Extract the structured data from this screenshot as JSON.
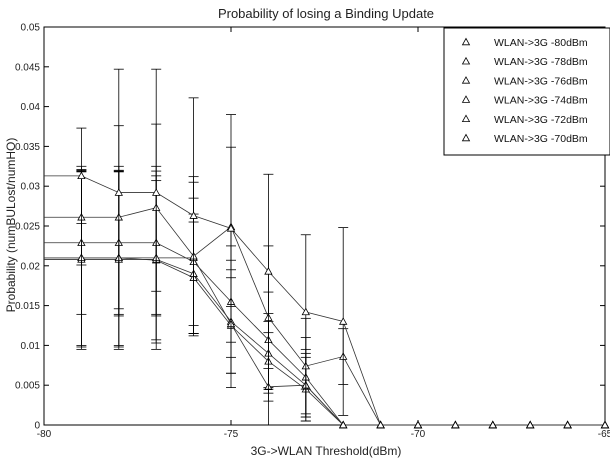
{
  "chart_data": {
    "type": "line",
    "title": "Probability of losing a Binding Update",
    "xlabel": "3G->WLAN Threshold(dBm)",
    "ylabel": "Probability (numBULost/numHO)",
    "xlim": [
      -80,
      -65
    ],
    "ylim": [
      0,
      0.05
    ],
    "xticks": [
      -80,
      -75,
      -70,
      -65
    ],
    "yticks": [
      0,
      0.005,
      0.01,
      0.015,
      0.02,
      0.025,
      0.03,
      0.035,
      0.04,
      0.045,
      0.05
    ],
    "grid": false,
    "legend_position": "top-right",
    "x": [
      -79,
      -78,
      -77,
      -76,
      -75,
      -74,
      -73,
      -72,
      -71,
      -70,
      -69,
      -68,
      -67,
      -66,
      -65
    ],
    "series": [
      {
        "name": "WLAN->3G -80dBm",
        "values": [
          0.021,
          0.021,
          0.0207,
          0.0185,
          0.0125,
          0.008,
          0.0045,
          0.0,
          0.0,
          0.0,
          0.0,
          0.0,
          0.0,
          0.0,
          0.0
        ],
        "errors": [
          0.011,
          0.011,
          0.01,
          0.007,
          0.006,
          0.005,
          0.004,
          0.0,
          0.0,
          0.0,
          0.0,
          0.0,
          0.0,
          0.0,
          0.0
        ]
      },
      {
        "name": "WLAN->3G -78dBm",
        "values": [
          0.0208,
          0.0208,
          0.0208,
          0.019,
          0.013,
          0.009,
          0.005,
          0.0,
          0.0,
          0.0,
          0.0,
          0.0,
          0.0,
          0.0,
          0.0
        ],
        "errors": [
          0.011,
          0.011,
          0.0105,
          0.0075,
          0.0065,
          0.005,
          0.004,
          0.0,
          0.0,
          0.0,
          0.0,
          0.0,
          0.0,
          0.0,
          0.0
        ]
      },
      {
        "name": "WLAN->3G -76dBm",
        "values": [
          0.0229,
          0.0229,
          0.0229,
          0.0205,
          0.0155,
          0.0107,
          0.006,
          0.0,
          0.0,
          0.0,
          0.0,
          0.0,
          0.0,
          0.0,
          0.0
        ],
        "errors": [
          0.009,
          0.009,
          0.009,
          0.008,
          0.007,
          0.006,
          0.005,
          0.0,
          0.0,
          0.0,
          0.0,
          0.0,
          0.0,
          0.0,
          0.0
        ]
      },
      {
        "name": "WLAN->3G -74dBm",
        "values": [
          0.021,
          0.021,
          0.021,
          0.021,
          0.0127,
          0.0048,
          0.005,
          0.0,
          0.0,
          0.0,
          0.0,
          0.0,
          0.0,
          0.0,
          0.0
        ],
        "errors": [
          0.0115,
          0.0115,
          0.0115,
          0.0095,
          0.008,
          0.0068,
          0.0045,
          0.0,
          0.0,
          0.0,
          0.0,
          0.0,
          0.0,
          0.0,
          0.0
        ]
      },
      {
        "name": "WLAN->3G -72dBm",
        "values": [
          0.0261,
          0.0261,
          0.0273,
          0.0212,
          0.0249,
          0.0135,
          0.0074,
          0.0086,
          0.0,
          0.0,
          0.0,
          0.0,
          0.0,
          0.0,
          0.0
        ],
        "errors": [
          0.006,
          0.0115,
          0.0105,
          0.01,
          0.01,
          0.009,
          0.006,
          0.0035,
          0.0,
          0.0,
          0.0,
          0.0,
          0.0,
          0.0,
          0.0
        ]
      },
      {
        "name": "WLAN->3G -70dBm",
        "values": [
          0.0313,
          0.0292,
          0.0292,
          0.0263,
          0.0247,
          0.0193,
          0.0142,
          0.013,
          0.0,
          0.0,
          0.0,
          0.0,
          0.0,
          0.0,
          0.0
        ],
        "errors": [
          0.006,
          0.0155,
          0.0155,
          0.0148,
          0.0143,
          0.0122,
          0.0097,
          0.0118,
          0.0,
          0.0,
          0.0,
          0.0,
          0.0,
          0.0,
          0.0
        ]
      }
    ]
  }
}
